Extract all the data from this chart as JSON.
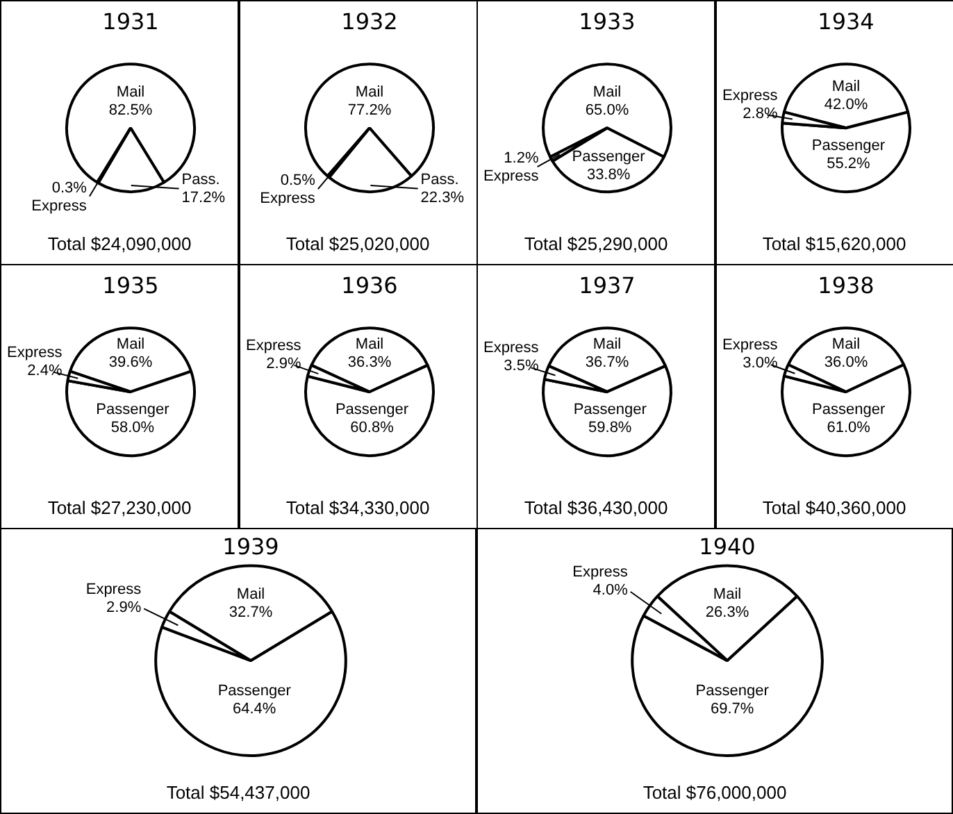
{
  "chart_data": [
    {
      "type": "pie",
      "title": "1931",
      "categories": [
        "Mail",
        "Pass.",
        "Express"
      ],
      "values": [
        82.5,
        17.2,
        0.3
      ],
      "value_labels": [
        "82.5%",
        "17.2%",
        "0.3%"
      ],
      "colors": [
        "#ffffff",
        "#ffffff",
        "#ffffff"
      ],
      "annotations": [
        "Total $24,090,000"
      ]
    },
    {
      "type": "pie",
      "title": "1932",
      "categories": [
        "Mail",
        "Pass.",
        "Express"
      ],
      "values": [
        77.2,
        22.3,
        0.5
      ],
      "value_labels": [
        "77.2%",
        "22.3%",
        "0.5%"
      ],
      "colors": [
        "#ffffff",
        "#ffffff",
        "#ffffff"
      ],
      "annotations": [
        "Total $25,020,000"
      ]
    },
    {
      "type": "pie",
      "title": "1933",
      "categories": [
        "Mail",
        "Passenger",
        "Express"
      ],
      "values": [
        65.0,
        33.8,
        1.2
      ],
      "value_labels": [
        "65.0%",
        "33.8%",
        "1.2%"
      ],
      "colors": [
        "#ffffff",
        "#ffffff",
        "#ffffff"
      ],
      "annotations": [
        "Total $25,290,000"
      ]
    },
    {
      "type": "pie",
      "title": "1934",
      "categories": [
        "Mail",
        "Passenger",
        "Express"
      ],
      "values": [
        42.0,
        55.2,
        2.8
      ],
      "value_labels": [
        "42.0%",
        "55.2%",
        "2.8%"
      ],
      "colors": [
        "#ffffff",
        "#ffffff",
        "#ffffff"
      ],
      "annotations": [
        "Total $15,620,000"
      ]
    },
    {
      "type": "pie",
      "title": "1935",
      "categories": [
        "Mail",
        "Passenger",
        "Express"
      ],
      "values": [
        39.6,
        58.0,
        2.4
      ],
      "value_labels": [
        "39.6%",
        "58.0%",
        "2.4%"
      ],
      "colors": [
        "#ffffff",
        "#ffffff",
        "#ffffff"
      ],
      "annotations": [
        "Total $27,230,000"
      ]
    },
    {
      "type": "pie",
      "title": "1936",
      "categories": [
        "Mail",
        "Passenger",
        "Express"
      ],
      "values": [
        36.3,
        60.8,
        2.9
      ],
      "value_labels": [
        "36.3%",
        "60.8%",
        "2.9%"
      ],
      "colors": [
        "#ffffff",
        "#ffffff",
        "#ffffff"
      ],
      "annotations": [
        "Total $34,330,000"
      ]
    },
    {
      "type": "pie",
      "title": "1937",
      "categories": [
        "Mail",
        "Passenger",
        "Express"
      ],
      "values": [
        36.7,
        59.8,
        3.5
      ],
      "value_labels": [
        "36.7%",
        "59.8%",
        "3.5%"
      ],
      "colors": [
        "#ffffff",
        "#ffffff",
        "#ffffff"
      ],
      "annotations": [
        "Total $36,430,000"
      ]
    },
    {
      "type": "pie",
      "title": "1938",
      "categories": [
        "Mail",
        "Passenger",
        "Express"
      ],
      "values": [
        36.0,
        61.0,
        3.0
      ],
      "value_labels": [
        "36.0%",
        "61.0%",
        "3.0%"
      ],
      "colors": [
        "#ffffff",
        "#ffffff",
        "#ffffff"
      ],
      "annotations": [
        "Total $40,360,000"
      ]
    },
    {
      "type": "pie",
      "title": "1939",
      "categories": [
        "Mail",
        "Passenger",
        "Express"
      ],
      "values": [
        32.7,
        64.4,
        2.9
      ],
      "value_labels": [
        "32.7%",
        "64.4%",
        "2.9%"
      ],
      "colors": [
        "#ffffff",
        "#ffffff",
        "#ffffff"
      ],
      "annotations": [
        "Total $54,437,000"
      ]
    },
    {
      "type": "pie",
      "title": "1940",
      "categories": [
        "Mail",
        "Passenger",
        "Express"
      ],
      "values": [
        26.3,
        69.7,
        4.0
      ],
      "value_labels": [
        "26.3%",
        "69.7%",
        "4.0%"
      ],
      "colors": [
        "#ffffff",
        "#ffffff",
        "#ffffff"
      ],
      "annotations": [
        "Total $76,000,000"
      ]
    }
  ]
}
